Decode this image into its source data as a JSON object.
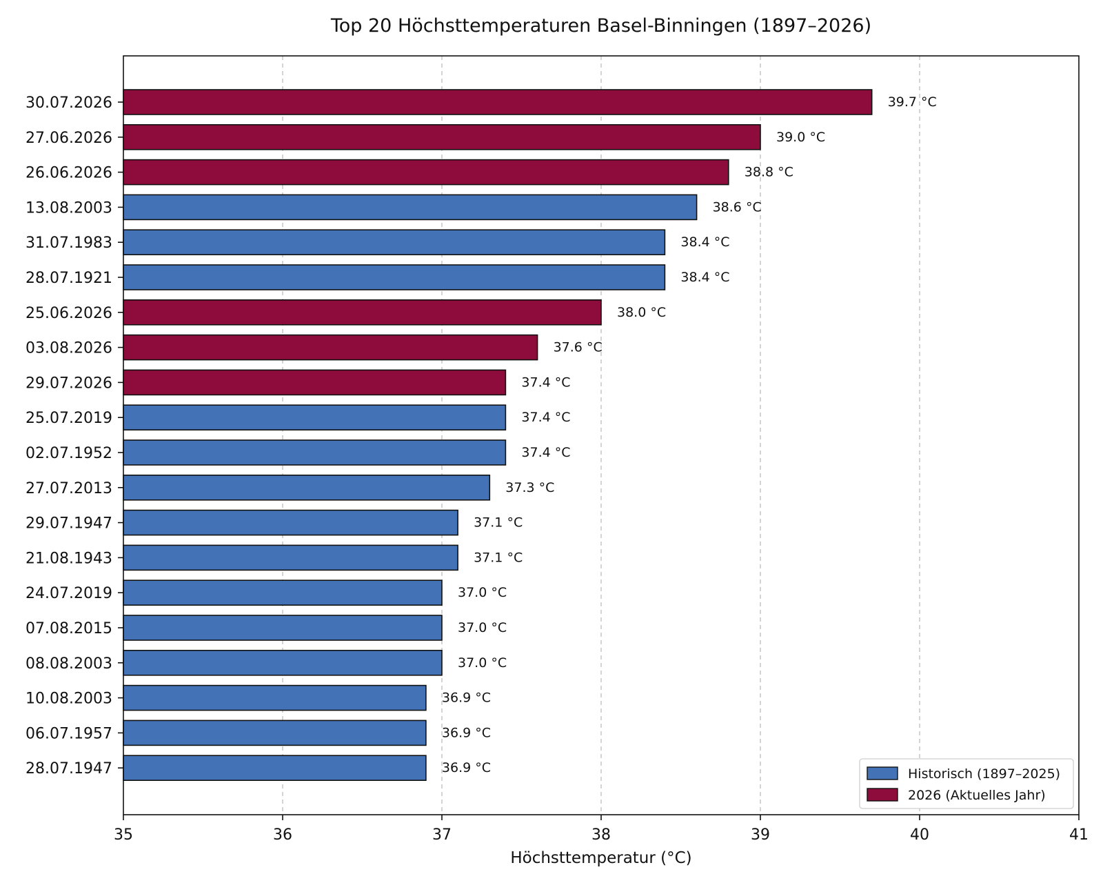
{
  "chart_data": {
    "type": "bar",
    "orientation": "horizontal",
    "title": "Top 20 Höchsttemperaturen Basel-Binningen (1897–2026)",
    "xlabel": "Höchsttemperatur (°C)",
    "ylabel": "",
    "xlim": [
      35,
      41
    ],
    "xticks": [
      "35",
      "36",
      "37",
      "38",
      "39",
      "40",
      "41"
    ],
    "grid": "x-dashed",
    "legend_position": "bottom-right",
    "colors": {
      "Historisch (1897–2025)": "#4372b6",
      "2026 (Aktuelles Jahr)": "#8e0c3b"
    },
    "legend": [
      "Historisch (1897–2025)",
      "2026 (Aktuelles Jahr)"
    ],
    "unit_suffix": " °C",
    "categories": [
      "30.07.2026",
      "27.06.2026",
      "26.06.2026",
      "13.08.2003",
      "31.07.1983",
      "28.07.1921",
      "25.06.2026",
      "03.08.2026",
      "29.07.2026",
      "25.07.2019",
      "02.07.1952",
      "27.07.2013",
      "29.07.1947",
      "21.08.1943",
      "24.07.2019",
      "07.08.2015",
      "08.08.2003",
      "10.08.2003",
      "06.07.1957",
      "28.07.1947"
    ],
    "values": [
      39.7,
      39.0,
      38.8,
      38.6,
      38.4,
      38.4,
      38.0,
      37.6,
      37.4,
      37.4,
      37.4,
      37.3,
      37.1,
      37.1,
      37.0,
      37.0,
      37.0,
      36.9,
      36.9,
      36.9
    ],
    "value_labels": [
      "39.7 °C",
      "39.0 °C",
      "38.8 °C",
      "38.6 °C",
      "38.4 °C",
      "38.4 °C",
      "38.0 °C",
      "37.6 °C",
      "37.4 °C",
      "37.4 °C",
      "37.4 °C",
      "37.3 °C",
      "37.1 °C",
      "37.1 °C",
      "37.0 °C",
      "37.0 °C",
      "37.0 °C",
      "36.9 °C",
      "36.9 °C",
      "36.9 °C"
    ],
    "groups": [
      "2026 (Aktuelles Jahr)",
      "2026 (Aktuelles Jahr)",
      "2026 (Aktuelles Jahr)",
      "Historisch (1897–2025)",
      "Historisch (1897–2025)",
      "Historisch (1897–2025)",
      "2026 (Aktuelles Jahr)",
      "2026 (Aktuelles Jahr)",
      "2026 (Aktuelles Jahr)",
      "Historisch (1897–2025)",
      "Historisch (1897–2025)",
      "Historisch (1897–2025)",
      "Historisch (1897–2025)",
      "Historisch (1897–2025)",
      "Historisch (1897–2025)",
      "Historisch (1897–2025)",
      "Historisch (1897–2025)",
      "Historisch (1897–2025)",
      "Historisch (1897–2025)",
      "Historisch (1897–2025)"
    ]
  }
}
